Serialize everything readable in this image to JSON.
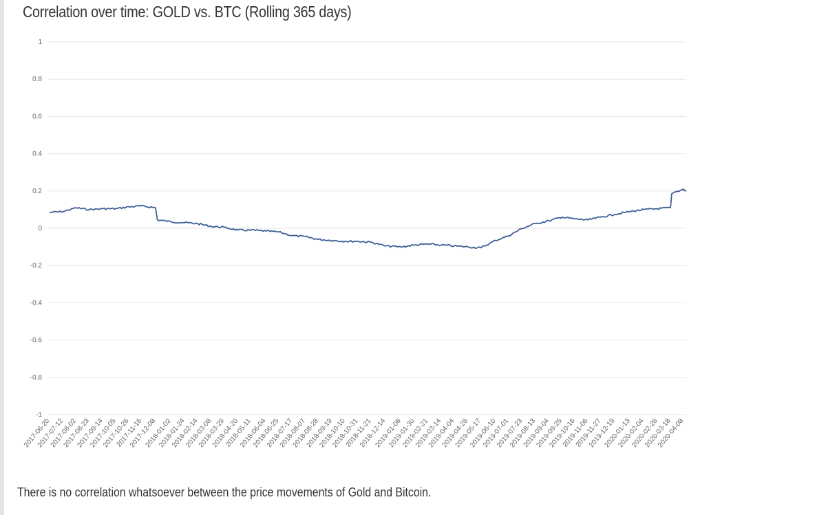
{
  "title": "Correlation over time: GOLD vs. BTC (Rolling 365 days)",
  "caption": "There is no correlation whatsoever between the price movements of Gold and Bitcoin.",
  "colors": {
    "line": "#3f5f95",
    "grid": "#e6e6e6",
    "tick_text": "#666666",
    "title": "#333333"
  },
  "chart_data": {
    "type": "line",
    "title": "Correlation over time: GOLD vs. BTC (Rolling 365 days)",
    "xlabel": "",
    "ylabel": "",
    "ylim": [
      -1,
      1
    ],
    "yticks": [
      1,
      0.8,
      0.6,
      0.4,
      0.2,
      0,
      -0.2,
      -0.4,
      -0.6,
      -0.8,
      -1
    ],
    "ytick_labels": [
      "1",
      "0.8",
      "0.6",
      "0.4",
      "0.2",
      "0",
      "-0.2",
      "-0.4",
      "-0.6",
      "-0.8",
      "-1"
    ],
    "grid": true,
    "legend": "none",
    "x_tick_labels": [
      "2017-06-20",
      "2017-07-12",
      "2017-08-02",
      "2017-08-23",
      "2017-09-14",
      "2017-10-05",
      "2017-10-26",
      "2017-11-16",
      "2017-12-08",
      "2018-01-02",
      "2018-01-24",
      "2018-02-14",
      "2018-03-08",
      "2018-03-29",
      "2018-04-20",
      "2018-05-11",
      "2018-06-04",
      "2018-06-25",
      "2018-07-17",
      "2018-08-07",
      "2018-08-28",
      "2018-09-19",
      "2018-10-10",
      "2018-10-31",
      "2018-11-21",
      "2018-12-14",
      "2019-01-08",
      "2019-01-30",
      "2019-02-21",
      "2019-03-14",
      "2019-04-04",
      "2019-04-26",
      "2019-05-17",
      "2019-06-10",
      "2019-07-01",
      "2019-07-23",
      "2019-08-13",
      "2019-09-04",
      "2019-09-25",
      "2019-10-16",
      "2019-11-06",
      "2019-11-27",
      "2019-12-19",
      "2020-01-13",
      "2020-02-04",
      "2020-02-26",
      "2020-03-18",
      "2020-04-08"
    ],
    "series": [
      {
        "x": [
          "2017-06-20",
          "2017-07-12",
          "2017-08-02",
          "2017-08-23",
          "2017-09-14",
          "2017-10-05",
          "2017-10-26",
          "2017-11-16",
          "2017-12-08",
          "2017-12-11",
          "2018-01-02",
          "2018-01-24",
          "2018-02-14",
          "2018-03-08",
          "2018-03-29",
          "2018-04-20",
          "2018-05-11",
          "2018-06-04",
          "2018-06-25",
          "2018-07-17",
          "2018-08-07",
          "2018-08-28",
          "2018-09-19",
          "2018-10-10",
          "2018-10-31",
          "2018-11-21",
          "2018-12-14",
          "2019-01-08",
          "2019-01-30",
          "2019-02-21",
          "2019-03-14",
          "2019-04-04",
          "2019-04-26",
          "2019-05-17",
          "2019-06-10",
          "2019-07-01",
          "2019-07-23",
          "2019-08-13",
          "2019-09-04",
          "2019-09-25",
          "2019-10-16",
          "2019-11-06",
          "2019-11-27",
          "2019-12-19",
          "2020-01-13",
          "2020-02-04",
          "2020-02-26",
          "2020-03-18",
          "2020-03-20",
          "2020-04-08",
          "2020-04-15"
        ],
        "values": [
          0.085,
          0.09,
          0.11,
          0.1,
          0.105,
          0.105,
          0.115,
          0.12,
          0.11,
          0.045,
          0.035,
          0.03,
          0.025,
          0.01,
          0.005,
          -0.01,
          -0.01,
          -0.015,
          -0.02,
          -0.04,
          -0.045,
          -0.06,
          -0.065,
          -0.07,
          -0.07,
          -0.075,
          -0.095,
          -0.1,
          -0.09,
          -0.085,
          -0.09,
          -0.095,
          -0.1,
          -0.105,
          -0.065,
          -0.04,
          0.0,
          0.025,
          0.04,
          0.06,
          0.05,
          0.045,
          0.06,
          0.075,
          0.09,
          0.1,
          0.105,
          0.11,
          0.185,
          0.21,
          0.2
        ]
      }
    ]
  }
}
